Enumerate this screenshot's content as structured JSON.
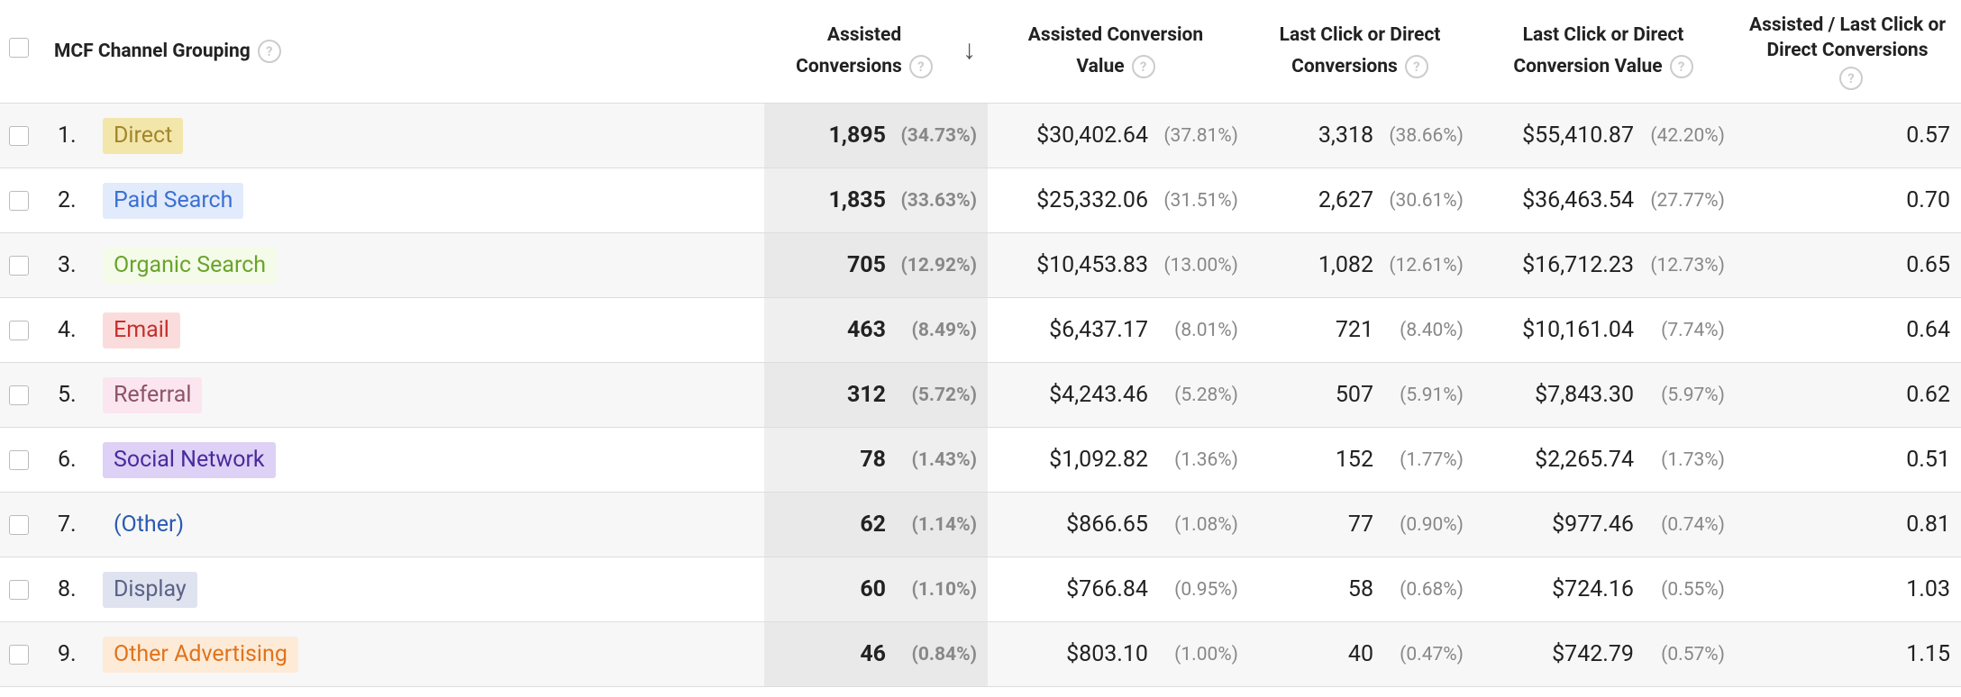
{
  "header": {
    "channel": "MCF Channel Grouping",
    "columns": [
      "Assisted Conversions",
      "Assisted Conversion Value",
      "Last Click or Direct Conversions",
      "Last Click or Direct Conversion Value",
      "Assisted / Last Click or Direct Conversions"
    ]
  },
  "rows": [
    {
      "rank": "1.",
      "channel": "Direct",
      "cells": [
        [
          "1,895",
          "(34.73%)"
        ],
        [
          "$30,402.64",
          "(37.81%)"
        ],
        [
          "3,318",
          "(38.66%)"
        ],
        [
          "$55,410.87",
          "(42.20%)"
        ],
        [
          "0.57"
        ]
      ]
    },
    {
      "rank": "2.",
      "channel": "Paid Search",
      "cells": [
        [
          "1,835",
          "(33.63%)"
        ],
        [
          "$25,332.06",
          "(31.51%)"
        ],
        [
          "2,627",
          "(30.61%)"
        ],
        [
          "$36,463.54",
          "(27.77%)"
        ],
        [
          "0.70"
        ]
      ]
    },
    {
      "rank": "3.",
      "channel": "Organic Search",
      "cells": [
        [
          "705",
          "(12.92%)"
        ],
        [
          "$10,453.83",
          "(13.00%)"
        ],
        [
          "1,082",
          "(12.61%)"
        ],
        [
          "$16,712.23",
          "(12.73%)"
        ],
        [
          "0.65"
        ]
      ]
    },
    {
      "rank": "4.",
      "channel": "Email",
      "cells": [
        [
          "463",
          "(8.49%)"
        ],
        [
          "$6,437.17",
          "(8.01%)"
        ],
        [
          "721",
          "(8.40%)"
        ],
        [
          "$10,161.04",
          "(7.74%)"
        ],
        [
          "0.64"
        ]
      ]
    },
    {
      "rank": "5.",
      "channel": "Referral",
      "cells": [
        [
          "312",
          "(5.72%)"
        ],
        [
          "$4,243.46",
          "(5.28%)"
        ],
        [
          "507",
          "(5.91%)"
        ],
        [
          "$7,843.30",
          "(5.97%)"
        ],
        [
          "0.62"
        ]
      ]
    },
    {
      "rank": "6.",
      "channel": "Social Network",
      "cells": [
        [
          "78",
          "(1.43%)"
        ],
        [
          "$1,092.82",
          "(1.36%)"
        ],
        [
          "152",
          "(1.77%)"
        ],
        [
          "$2,265.74",
          "(1.73%)"
        ],
        [
          "0.51"
        ]
      ]
    },
    {
      "rank": "7.",
      "channel": "(Other)",
      "cells": [
        [
          "62",
          "(1.14%)"
        ],
        [
          "$866.65",
          "(1.08%)"
        ],
        [
          "77",
          "(0.90%)"
        ],
        [
          "$977.46",
          "(0.74%)"
        ],
        [
          "0.81"
        ]
      ]
    },
    {
      "rank": "8.",
      "channel": "Display",
      "cells": [
        [
          "60",
          "(1.10%)"
        ],
        [
          "$766.84",
          "(0.95%)"
        ],
        [
          "58",
          "(0.68%)"
        ],
        [
          "$724.16",
          "(0.55%)"
        ],
        [
          "1.03"
        ]
      ]
    },
    {
      "rank": "9.",
      "channel": "Other Advertising",
      "cells": [
        [
          "46",
          "(0.84%)"
        ],
        [
          "$803.10",
          "(1.00%)"
        ],
        [
          "40",
          "(0.47%)"
        ],
        [
          "$742.79",
          "(0.57%)"
        ],
        [
          "1.15"
        ]
      ]
    }
  ]
}
